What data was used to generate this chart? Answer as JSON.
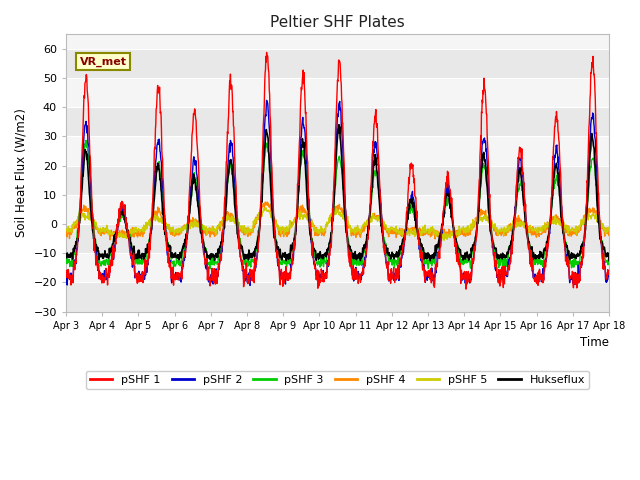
{
  "title": "Peltier SHF Plates",
  "ylabel": "Soil Heat Flux (W/m2)",
  "xlabel": "Time",
  "ylim": [
    -30,
    65
  ],
  "yticks": [
    -30,
    -20,
    -10,
    0,
    10,
    20,
    30,
    40,
    50,
    60
  ],
  "xtick_labels": [
    "Apr 3",
    "Apr 4",
    "Apr 5",
    "Apr 6",
    "Apr 7",
    "Apr 8",
    "Apr 9",
    "Apr 10",
    "Apr 11",
    "Apr 12",
    "Apr 13",
    "Apr 14",
    "Apr 15",
    "Apr 16",
    "Apr 17",
    "Apr 18"
  ],
  "colors": {
    "pSHF1": "#ff0000",
    "pSHF2": "#0000cc",
    "pSHF3": "#00cc00",
    "pSHF4": "#ff8800",
    "pSHF5": "#cccc00",
    "Hukseflux": "#000000"
  },
  "legend_labels": [
    "pSHF 1",
    "pSHF 2",
    "pSHF 3",
    "pSHF 4",
    "pSHF 5",
    "Hukseflux"
  ],
  "annotation_text": "VR_met",
  "figsize": [
    6.4,
    4.8
  ],
  "dpi": 100,
  "n_days": 16,
  "seed": 42
}
